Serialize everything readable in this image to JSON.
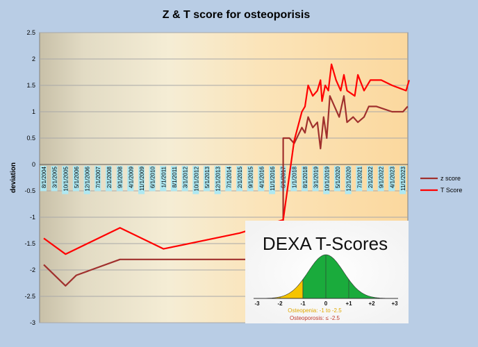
{
  "chart_data": {
    "type": "line",
    "title": "Z & T score for osteoporisis",
    "ylabel": "deviation",
    "ylim": [
      -3,
      2.5
    ],
    "yticks": [
      "2.5",
      "2",
      "1.5",
      "1",
      "0.5",
      "0",
      "-0.5",
      "-1",
      "-1.5",
      "-2",
      "-2.5",
      "-3"
    ],
    "ytick_values": [
      2.5,
      2,
      1.5,
      1,
      0.5,
      0,
      -0.5,
      -1,
      -1.5,
      -2,
      -2.5,
      -3
    ],
    "x_dates": [
      "8/1/2004",
      "3/1/2005",
      "10/1/2005",
      "5/1/2006",
      "12/1/2006",
      "7/1/2007",
      "2/1/2008",
      "9/1/2008",
      "4/1/2009",
      "11/1/2009",
      "6/1/2010",
      "1/1/2011",
      "8/1/2011",
      "3/1/2012",
      "10/1/2012",
      "5/1/2013",
      "12/1/2013",
      "7/1/2014",
      "2/1/2015",
      "9/1/2015",
      "4/1/2016",
      "11/1/2016",
      "6/1/2017",
      "1/1/2018",
      "8/1/2018",
      "3/1/2019",
      "10/1/2019",
      "5/1/2020",
      "12/1/2020",
      "7/1/2021",
      "2/1/2022",
      "9/1/2022",
      "4/1/2023",
      "11/1/2023"
    ],
    "grid": true,
    "legend_position": "right",
    "series": [
      {
        "name": "z score",
        "color": "#a0302d",
        "points": [
          [
            "8/1/2004",
            -1.9
          ],
          [
            "10/1/2005",
            -2.3
          ],
          [
            "5/1/2006",
            -2.1
          ],
          [
            "9/1/2008",
            -1.8
          ],
          [
            "6/1/2017",
            -1.8
          ],
          [
            "6/1/2017",
            0.5
          ],
          [
            "10/1/2017",
            0.5
          ],
          [
            "1/1/2018",
            0.4
          ],
          [
            "6/1/2018",
            0.7
          ],
          [
            "8/1/2018",
            0.6
          ],
          [
            "10/1/2018",
            0.9
          ],
          [
            "1/1/2019",
            0.7
          ],
          [
            "4/1/2019",
            0.8
          ],
          [
            "6/1/2019",
            0.3
          ],
          [
            "8/1/2019",
            0.9
          ],
          [
            "10/1/2019",
            0.5
          ],
          [
            "12/1/2019",
            1.3
          ],
          [
            "3/1/2020",
            1.1
          ],
          [
            "6/1/2020",
            0.9
          ],
          [
            "9/1/2020",
            1.3
          ],
          [
            "11/1/2020",
            0.8
          ],
          [
            "3/1/2021",
            0.9
          ],
          [
            "6/1/2021",
            0.8
          ],
          [
            "10/1/2021",
            0.9
          ],
          [
            "1/1/2022",
            1.1
          ],
          [
            "6/1/2022",
            1.1
          ],
          [
            "4/1/2023",
            1.0
          ],
          [
            "11/1/2023",
            1.0
          ],
          [
            "2/1/2024",
            1.1
          ]
        ]
      },
      {
        "name": "T Score",
        "color": "#ff0000",
        "points": [
          [
            "8/1/2004",
            -1.4
          ],
          [
            "10/1/2005",
            -1.7
          ],
          [
            "9/1/2008",
            -1.2
          ],
          [
            "1/1/2011",
            -1.6
          ],
          [
            "2/1/2015",
            -1.3
          ],
          [
            "6/1/2017",
            -1.05
          ],
          [
            "1/1/2018",
            0.45
          ],
          [
            "6/1/2018",
            1.0
          ],
          [
            "8/1/2018",
            1.1
          ],
          [
            "10/1/2018",
            1.5
          ],
          [
            "1/1/2019",
            1.3
          ],
          [
            "4/1/2019",
            1.4
          ],
          [
            "6/1/2019",
            1.6
          ],
          [
            "7/1/2019",
            1.2
          ],
          [
            "9/1/2019",
            1.5
          ],
          [
            "11/1/2019",
            1.4
          ],
          [
            "1/1/2020",
            1.9
          ],
          [
            "4/1/2020",
            1.6
          ],
          [
            "7/1/2020",
            1.4
          ],
          [
            "9/1/2020",
            1.7
          ],
          [
            "11/1/2020",
            1.4
          ],
          [
            "4/1/2021",
            1.3
          ],
          [
            "6/1/2021",
            1.7
          ],
          [
            "10/1/2021",
            1.4
          ],
          [
            "2/1/2022",
            1.6
          ],
          [
            "9/1/2022",
            1.6
          ],
          [
            "4/1/2023",
            1.5
          ],
          [
            "1/1/2024",
            1.4
          ],
          [
            "3/1/2024",
            1.6
          ]
        ]
      }
    ]
  },
  "inset": {
    "title": "DEXA T-Scores",
    "ticks": [
      "-3",
      "-2",
      "-1",
      "0",
      "+1",
      "+2",
      "+3"
    ],
    "tick_values": [
      -3,
      -2,
      -1,
      0,
      1,
      2,
      3
    ],
    "osteopenia_label": "Osteopenia:  -1 to -2.5",
    "osteoporosis_label": "Osteoporosis:  ≤ -2.5",
    "colors": {
      "normal": "#1aab3c",
      "osteopenia": "#f5c400",
      "osteoporosis": "#c0392b"
    }
  }
}
